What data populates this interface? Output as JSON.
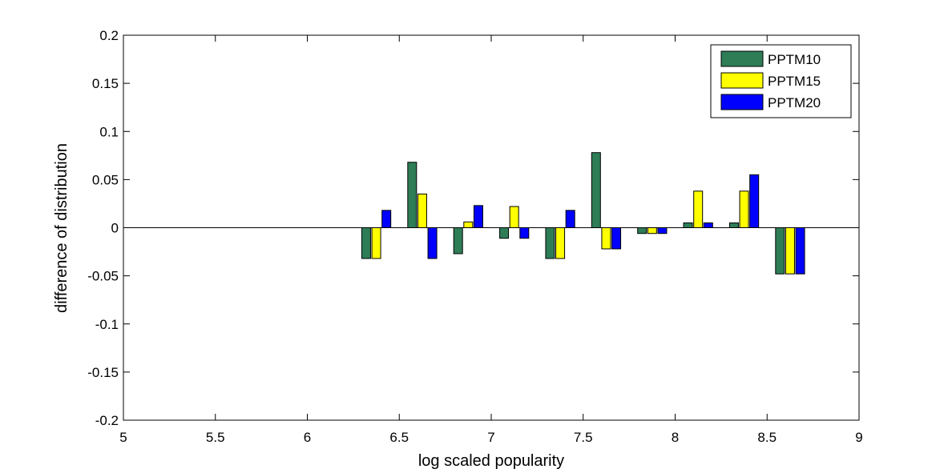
{
  "chart_data": {
    "type": "bar",
    "title": "",
    "xlabel": "log scaled popularity",
    "ylabel": "difference of distribution",
    "xlim": [
      5,
      9
    ],
    "ylim": [
      -0.2,
      0.2
    ],
    "x_ticks": [
      5,
      5.5,
      6,
      6.5,
      7,
      7.5,
      8,
      8.5,
      9
    ],
    "x_tick_labels": [
      "5",
      "5.5",
      "6",
      "6.5",
      "7",
      "7.5",
      "8",
      "8.5",
      "9"
    ],
    "y_ticks": [
      -0.2,
      -0.15,
      -0.1,
      -0.05,
      0,
      0.05,
      0.1,
      0.15,
      0.2
    ],
    "y_tick_labels": [
      "-0.2",
      "-0.15",
      "-0.1",
      "-0.05",
      "0",
      "0.05",
      "0.1",
      "0.15",
      "0.2"
    ],
    "grid": false,
    "legend_position": "top-right",
    "group_centers": [
      6.375,
      6.625,
      6.875,
      7.125,
      7.375,
      7.625,
      7.875,
      8.125,
      8.375,
      8.625
    ],
    "series": [
      {
        "name": "PPTM10",
        "color": "#2e7d57",
        "values": [
          -0.032,
          0.068,
          -0.027,
          -0.011,
          -0.032,
          0.078,
          -0.006,
          0.005,
          0.005,
          -0.048
        ]
      },
      {
        "name": "PPTM15",
        "color": "#ffff00",
        "values": [
          -0.032,
          0.035,
          0.006,
          0.022,
          -0.032,
          -0.022,
          -0.006,
          0.038,
          0.038,
          -0.048
        ]
      },
      {
        "name": "PPTM20",
        "color": "#0000ff",
        "values": [
          0.018,
          -0.032,
          0.023,
          -0.011,
          0.018,
          -0.022,
          -0.006,
          0.005,
          0.055,
          -0.048
        ]
      }
    ]
  }
}
